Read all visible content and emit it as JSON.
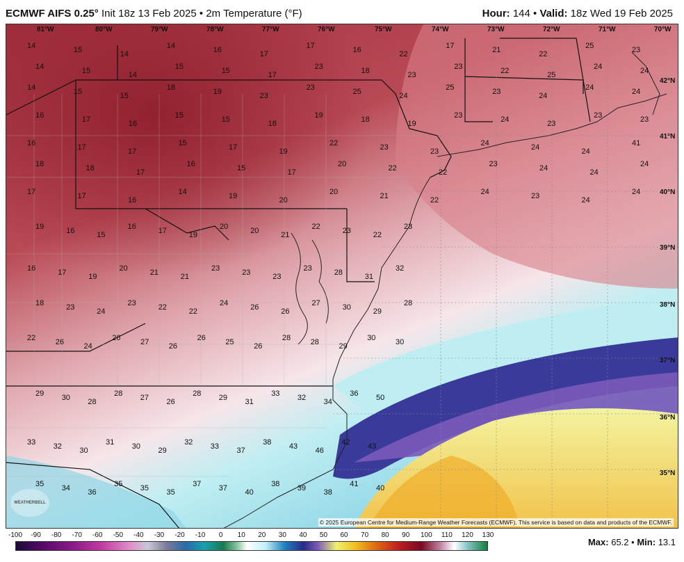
{
  "header": {
    "model": "ECMWF AIFS 0.25",
    "degree": "°",
    "init": "Init 18z 13 Feb 2025",
    "sep": "•",
    "field": "2m Temperature (°F)",
    "hour_label": "Hour:",
    "hour": "144",
    "valid_label": "Valid:",
    "valid": "18z Wed 19 Feb 2025"
  },
  "lon_labels": [
    "81°W",
    "80°W",
    "79°W",
    "78°W",
    "77°W",
    "76°W",
    "75°W",
    "74°W",
    "73°W",
    "72°W",
    "71°W",
    "70°W"
  ],
  "lat_labels": [
    "42°N",
    "41°N",
    "40°N",
    "39°N",
    "38°N",
    "37°N",
    "36°N",
    "35°N"
  ],
  "colorbar": {
    "ticks": [
      "-100",
      "-90",
      "-80",
      "-70",
      "-60",
      "-50",
      "-40",
      "-30",
      "-20",
      "-10",
      "0",
      "10",
      "20",
      "30",
      "40",
      "50",
      "60",
      "70",
      "80",
      "90",
      "100",
      "110",
      "120",
      "130"
    ]
  },
  "stats": {
    "max_label": "Max:",
    "max": "65.2",
    "sep": "•",
    "min_label": "Min:",
    "min": "13.1"
  },
  "copyright": "© 2025 European Centre for Medium-Range Weather Forecasts (ECMWF). This service is based on data and products of the ECMWF.",
  "logo_text": "WEATHERBELL",
  "colors": {
    "cold_core": "#a02a36",
    "warm_ocean": "#f2c24a",
    "front_blue": "#3a3a9a",
    "cyan": "#bfeef2"
  },
  "temperature_values": [
    "14",
    "15",
    "14",
    "14",
    "16",
    "17",
    "17",
    "16",
    "22",
    "17",
    "21",
    "22",
    "25",
    "23",
    "14",
    "15",
    "14",
    "15",
    "15",
    "17",
    "23",
    "18",
    "23",
    "23",
    "22",
    "25",
    "24",
    "24",
    "14",
    "15",
    "15",
    "18",
    "19",
    "23",
    "23",
    "25",
    "24",
    "25",
    "23",
    "24",
    "24",
    "24",
    "16",
    "17",
    "16",
    "15",
    "15",
    "18",
    "19",
    "18",
    "19",
    "23",
    "24",
    "23",
    "23",
    "23",
    "16",
    "17",
    "17",
    "15",
    "17",
    "19",
    "22",
    "23",
    "23",
    "24",
    "24",
    "24",
    "41",
    "18",
    "18",
    "17",
    "16",
    "15",
    "17",
    "20",
    "22",
    "22",
    "23",
    "24",
    "24",
    "24",
    "17",
    "17",
    "16",
    "14",
    "19",
    "20",
    "20",
    "21",
    "22",
    "24",
    "23",
    "24",
    "24",
    "19",
    "16",
    "15",
    "16",
    "17",
    "19",
    "20",
    "20",
    "21",
    "22",
    "23",
    "22",
    "23",
    "16",
    "17",
    "19",
    "20",
    "21",
    "21",
    "23",
    "23",
    "23",
    "23",
    "28",
    "31",
    "32",
    "18",
    "23",
    "24",
    "23",
    "22",
    "22",
    "24",
    "26",
    "26",
    "27",
    "30",
    "29",
    "28",
    "22",
    "26",
    "24",
    "26",
    "27",
    "26",
    "26",
    "25",
    "26",
    "28",
    "28",
    "29",
    "30",
    "30",
    "29",
    "30",
    "28",
    "28",
    "27",
    "26",
    "28",
    "29",
    "31",
    "33",
    "32",
    "34",
    "36",
    "50",
    "33",
    "32",
    "30",
    "31",
    "30",
    "29",
    "32",
    "33",
    "37",
    "38",
    "43",
    "46",
    "42",
    "43",
    "35",
    "34",
    "36",
    "35",
    "35",
    "35",
    "37",
    "37",
    "40",
    "38",
    "39",
    "38",
    "41",
    "40"
  ]
}
